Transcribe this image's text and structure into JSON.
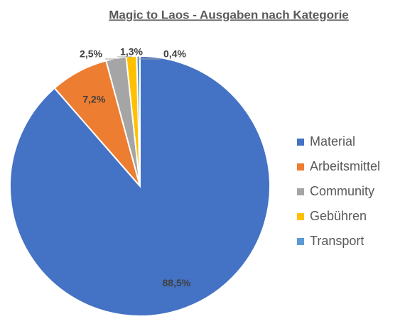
{
  "chart_data": {
    "type": "pie",
    "title": "Magic to Laos - Ausgaben nach Kategorie",
    "categories": [
      "Material",
      "Arbeitsmittel",
      "Community",
      "Gebühren",
      "Transport"
    ],
    "values": [
      88.5,
      7.2,
      2.5,
      1.3,
      0.4
    ],
    "value_labels": [
      "88,5%",
      "7,2%",
      "2,5%",
      "1,3%",
      "0,4%"
    ],
    "colors": [
      "#4472c4",
      "#ed7d31",
      "#a5a5a5",
      "#ffc000",
      "#5b9bd5"
    ],
    "legend": "right"
  }
}
